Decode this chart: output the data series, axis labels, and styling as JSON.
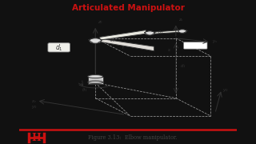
{
  "title": "Articulated Manipulator",
  "title_color": "#cc1111",
  "bg_color": "#f0f0ec",
  "caption": "Figure 3.13:  Elbow manipulator.",
  "caption_color": "#444444",
  "footer_line_color": "#cc1111",
  "sidebar_color": "#111111",
  "diagram_color": "#333333",
  "dashed_color": "#999999",
  "link_fill": "#e8e8e0",
  "box_fill": "#eeeee8",
  "joint_fill": "#dddddd"
}
